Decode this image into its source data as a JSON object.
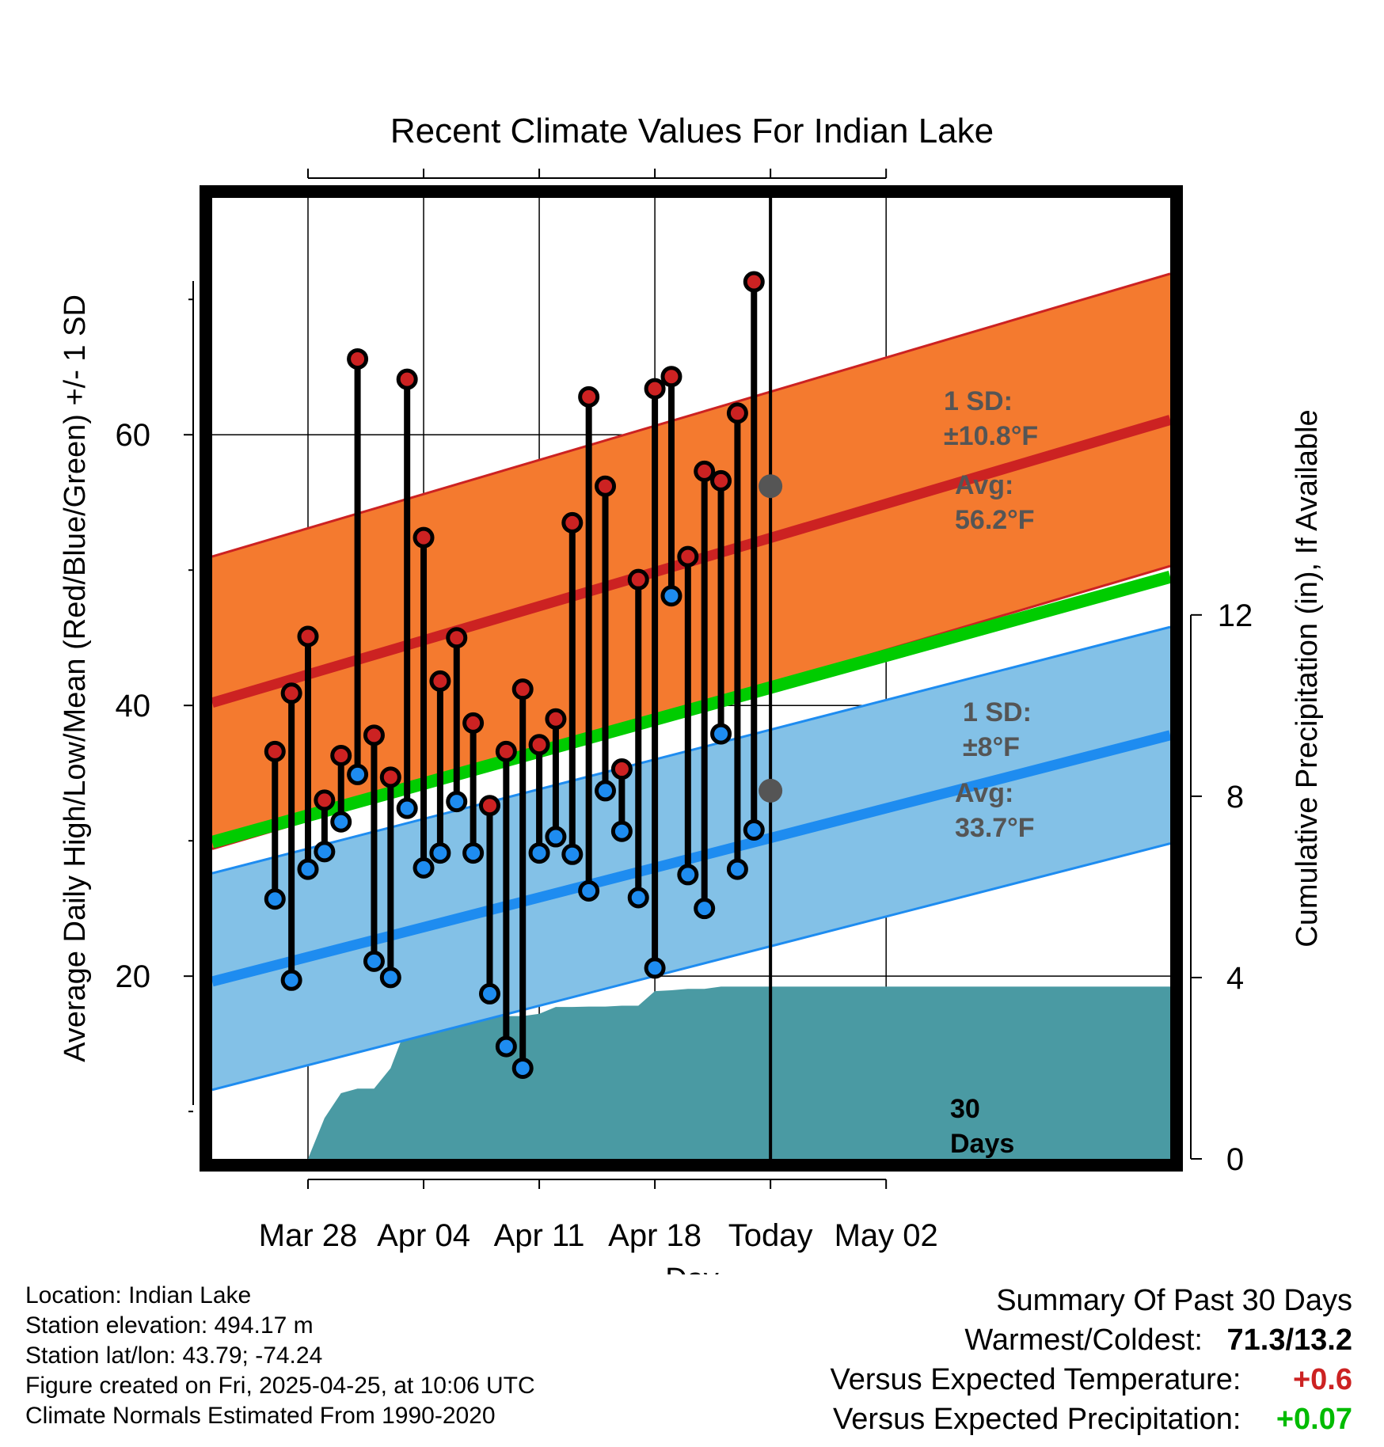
{
  "chart_data": {
    "type": "line",
    "title": "Recent Climate Values For Indian Lake",
    "xlabel": "Day",
    "ylabel": "Average Daily High/Low/Mean (Red/Blue/Green) +/- 1 SD",
    "ylabel_right": "Cumulative Precipitation (in), If Available",
    "ylim": [
      6.5,
      77.5
    ],
    "ylim_right": [
      0,
      21.2
    ],
    "xlim": [
      -5.8,
      52.2
    ],
    "yticks": [
      20,
      40,
      60
    ],
    "yticks_right": [
      0,
      4,
      8,
      12
    ],
    "xticks": [
      {
        "day": 0,
        "label": "Mar 28"
      },
      {
        "day": 7,
        "label": "Apr 04"
      },
      {
        "day": 14,
        "label": "Apr 11"
      },
      {
        "day": 21,
        "label": "Apr 18"
      },
      {
        "day": 28,
        "label": "Today"
      },
      {
        "day": 35,
        "label": "May 02"
      }
    ],
    "days": [
      -2,
      -1,
      0,
      1,
      2,
      3,
      4,
      5,
      6,
      7,
      8,
      9,
      10,
      11,
      12,
      13,
      14,
      15,
      16,
      17,
      18,
      19,
      20,
      21,
      22,
      23,
      24,
      25,
      26,
      27
    ],
    "highs": [
      36.6,
      40.9,
      45.1,
      33.0,
      36.3,
      65.6,
      37.8,
      34.7,
      64.1,
      52.4,
      41.8,
      45.0,
      38.7,
      32.6,
      36.6,
      41.2,
      37.1,
      39.0,
      53.5,
      62.8,
      56.2,
      35.3,
      49.3,
      63.4,
      64.3,
      51.0,
      57.3,
      56.6,
      61.6,
      71.3
    ],
    "lows": [
      25.7,
      19.7,
      27.9,
      29.2,
      31.4,
      34.9,
      21.1,
      19.9,
      32.4,
      28.0,
      29.1,
      32.9,
      29.1,
      18.7,
      14.8,
      13.2,
      29.1,
      30.3,
      29.0,
      26.3,
      33.7,
      30.7,
      25.8,
      20.6,
      48.1,
      27.5,
      25.0,
      37.9,
      27.9,
      30.8
    ],
    "normal_high_start": 40.2,
    "normal_high_end": 61.1,
    "normal_high_sd": 10.8,
    "normal_low_start": 19.6,
    "normal_low_end": 37.8,
    "normal_low_sd": 8,
    "normal_mean_start": 29.9,
    "normal_mean_end": 49.5,
    "precip_days": [
      -3,
      -2,
      -1,
      0,
      1,
      2,
      3,
      4,
      5,
      6,
      7,
      8,
      9,
      10,
      11,
      12,
      13,
      14,
      15,
      16,
      17,
      18,
      19,
      20,
      21,
      22,
      23,
      24,
      25,
      26,
      27,
      28,
      29,
      30,
      31,
      32,
      33,
      34,
      35,
      36,
      37
    ],
    "precip_cum": [
      0,
      0,
      0,
      0,
      0.9,
      1.45,
      1.55,
      1.55,
      2.0,
      2.95,
      2.95,
      3.1,
      3.1,
      3.12,
      3.12,
      3.15,
      3.15,
      3.2,
      3.35,
      3.35,
      3.36,
      3.36,
      3.38,
      3.38,
      3.7,
      3.72,
      3.75,
      3.75,
      3.8,
      3.8,
      3.8,
      3.8,
      3.8,
      3.8,
      3.8,
      3.8,
      3.8,
      3.8,
      3.8,
      3.8,
      3.8
    ],
    "today_avg_high": 56.2,
    "today_avg_low": 33.7
  },
  "annotations": {
    "high_sd_label": "1 SD:",
    "high_sd_value": "±10.8°F",
    "high_avg_label": "Avg:",
    "high_avg_value": "56.2°F",
    "low_sd_label": "1 SD:",
    "low_sd_value": "±8°F",
    "low_avg_label": "Avg:",
    "low_avg_value": "33.7°F",
    "days_label_num": "30",
    "days_label_word": "Days"
  },
  "footer": {
    "location": "Location: Indian Lake",
    "elevation": "Station elevation: 494.17 m",
    "latlon": "Station lat/lon: 43.79; -74.24",
    "created": "Figure created on Fri, 2025-04-25, at 10:06 UTC",
    "normals": "Climate Normals Estimated From 1990-2020"
  },
  "summary": {
    "heading": "Summary Of Past 30 Days",
    "warm_cold_label": "Warmest/Coldest:",
    "warm_cold_value": "71.3/13.2",
    "temp_label": "Versus Expected Temperature:",
    "temp_value": "+0.6",
    "precip_label": "Versus Expected Precipitation:",
    "precip_value": "+0.07"
  },
  "colors": {
    "high_band": "#f47a2f",
    "high_line": "#cc2222",
    "low_band": "#83c1e7",
    "low_line": "#1e8cf0",
    "mean_line": "#00cc00",
    "precip": "#4a9aa3",
    "high_dot": "#cc2222",
    "low_dot": "#1e8cf0",
    "avg_dot": "#555555",
    "temp_positive": "#cc2222",
    "precip_positive": "#00bb00"
  }
}
